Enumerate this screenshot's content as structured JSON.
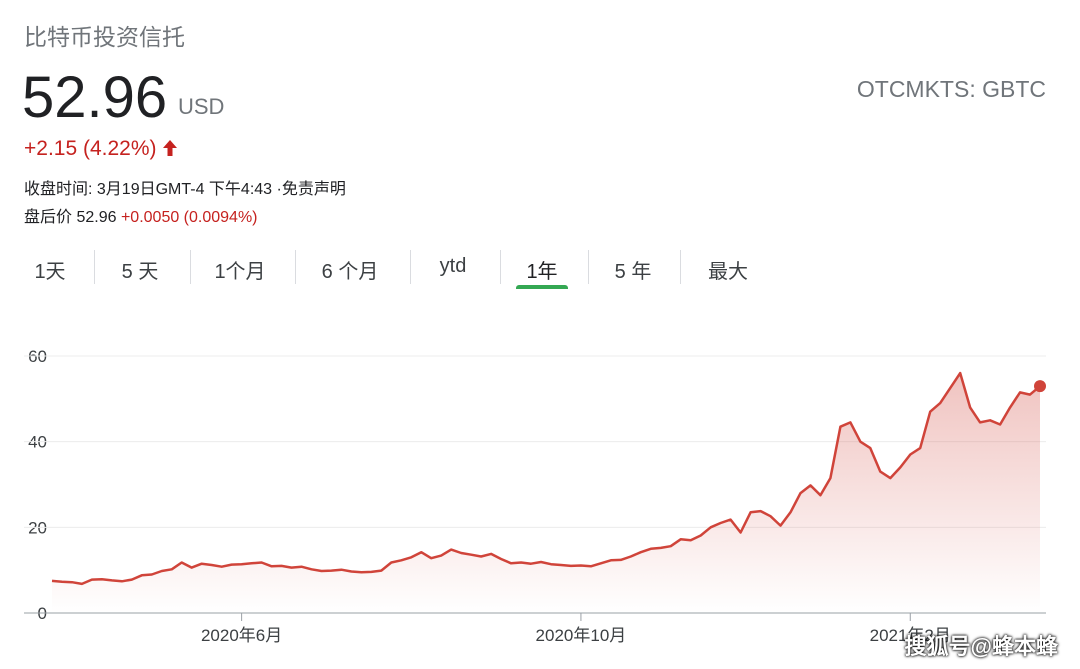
{
  "header": {
    "title": "比特币投资信托",
    "price": "52.96",
    "currency": "USD",
    "ticker": "OTCMKTS: GBTC",
    "change": "+2.15 (4.22%)",
    "close_time": "收盘时间: 3月19日GMT-4 下午4:43 ·免责声明",
    "after_hours_label": "盘后价 52.96",
    "after_hours_change": "+0.0050 (0.0094%)"
  },
  "tabs": {
    "items": [
      "1天",
      "5 天",
      "1个月",
      "6 个月",
      "ytd",
      "1年",
      "5 年",
      "最大"
    ],
    "selected": 5
  },
  "watermark": "搜狐号@蜂本蜂",
  "chart_data": {
    "type": "line",
    "color": "#d0443a",
    "grid": true,
    "ylim": [
      0,
      60
    ],
    "yticks": [
      0,
      20,
      40,
      60
    ],
    "categories": [
      null,
      null,
      null,
      null,
      null,
      null,
      null,
      null,
      null,
      null,
      null,
      null,
      null,
      null,
      null,
      null,
      null,
      null,
      null,
      "2020年6月",
      null,
      null,
      null,
      null,
      null,
      null,
      null,
      null,
      null,
      null,
      null,
      null,
      null,
      null,
      null,
      null,
      null,
      null,
      null,
      null,
      null,
      null,
      null,
      null,
      null,
      null,
      null,
      null,
      null,
      null,
      null,
      null,
      null,
      "2020年10月",
      null,
      null,
      null,
      null,
      null,
      null,
      null,
      null,
      null,
      null,
      null,
      null,
      null,
      null,
      null,
      null,
      null,
      null,
      null,
      null,
      null,
      null,
      null,
      null,
      null,
      null,
      null,
      null,
      null,
      null,
      null,
      null,
      "2021年2月",
      null,
      null,
      null,
      null,
      null,
      null,
      null,
      null,
      null,
      null,
      null,
      null,
      null
    ],
    "values": [
      7.5,
      7.3,
      7.2,
      6.8,
      7.8,
      7.9,
      7.6,
      7.4,
      7.8,
      8.8,
      9.0,
      9.8,
      10.2,
      11.8,
      10.6,
      11.5,
      11.2,
      10.8,
      11.3,
      11.4,
      11.6,
      11.8,
      10.9,
      11.0,
      10.6,
      10.8,
      10.2,
      9.8,
      9.9,
      10.1,
      9.7,
      9.5,
      9.6,
      9.9,
      11.8,
      12.3,
      13.0,
      14.2,
      12.8,
      13.4,
      14.8,
      14.0,
      13.6,
      13.2,
      13.8,
      12.6,
      11.6,
      11.8,
      11.5,
      11.9,
      11.4,
      11.2,
      11.0,
      11.1,
      10.9,
      11.6,
      12.3,
      12.4,
      13.2,
      14.2,
      15.0,
      15.2,
      15.6,
      17.2,
      17.0,
      18.1,
      20.0,
      21.0,
      21.8,
      18.8,
      23.5,
      23.8,
      22.6,
      20.4,
      23.5,
      28.0,
      29.8,
      27.5,
      31.5,
      43.5,
      44.5,
      40.0,
      38.5,
      33.0,
      31.5,
      34.0,
      37.0,
      38.5,
      47.0,
      49.0,
      52.5,
      56.0,
      48.0,
      44.5,
      45.0,
      44.0,
      48.0,
      51.5,
      51.0,
      52.96
    ]
  }
}
